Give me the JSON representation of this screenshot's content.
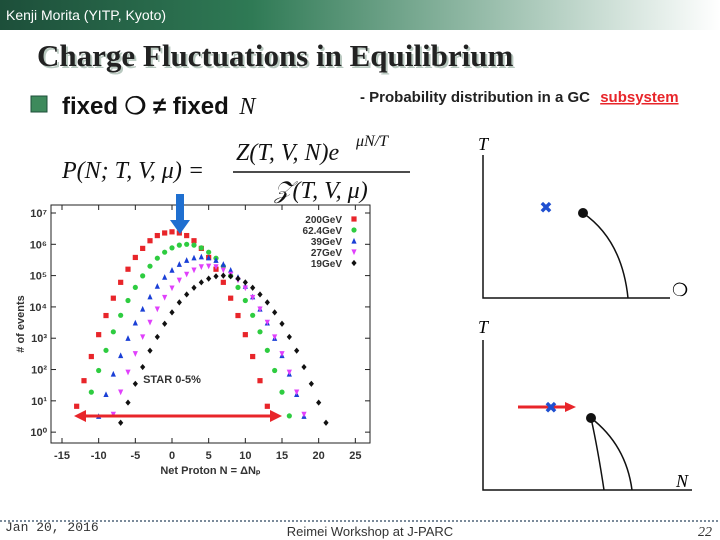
{
  "header": {
    "author": "Kenji Morita (YITP, Kyoto)"
  },
  "title": "Charge Fluctuations in Equilibrium",
  "bullet": {
    "text": "fixed ❍ ≠ fixed",
    "variable": "N"
  },
  "note": {
    "text": "- Probability distribution in a GC",
    "highlight": "subsystem"
  },
  "formula": {
    "lhs": "P(N; T, V, μ) =",
    "numerator": "Z(T, V, N)e",
    "exponent": "μN/T",
    "denominator": "𝒵(T, V, μ)"
  },
  "chart_data": {
    "type": "scatter",
    "x_label": "Net Proton N = ΔNₚ",
    "y_label": "# of events",
    "annotation": "STAR 0-5%",
    "log_y": true,
    "legend": "upper right",
    "xlim": [
      -16.5,
      27
    ],
    "ylim": [
      0.45,
      18000000
    ],
    "xticks": [
      -15,
      -10,
      -5,
      0,
      5,
      10,
      15,
      20,
      25
    ],
    "yticks": [
      {
        "value": 1,
        "label": "10⁰"
      },
      {
        "value": 10,
        "label": "10¹"
      },
      {
        "value": 100,
        "label": "10²"
      },
      {
        "value": 1000,
        "label": "10³"
      },
      {
        "value": 10000,
        "label": "10⁴"
      },
      {
        "value": 100000,
        "label": "10⁵"
      },
      {
        "value": 1000000,
        "label": "10⁶"
      },
      {
        "value": 10000000,
        "label": "10⁷"
      }
    ],
    "x": [
      -13,
      -12,
      -11,
      -10,
      -9,
      -8,
      -7,
      -6,
      -5,
      -4,
      -3,
      -2,
      -1,
      0,
      1,
      2,
      3,
      4,
      5,
      6,
      7,
      8,
      9,
      10,
      11,
      12,
      13,
      14,
      15,
      16,
      17,
      18,
      19,
      20,
      21
    ],
    "series": [
      {
        "name": "200GeV",
        "color": "#e8252a",
        "marker": "square",
        "values": [
          6.7,
          44,
          260,
          1300,
          5300,
          19000,
          61000,
          160000,
          380000,
          740000,
          1300000,
          1900000,
          2300000,
          2500000,
          2300000,
          1900000,
          1300000,
          740000,
          380000,
          160000,
          61000,
          19000,
          5300,
          1300,
          260,
          44,
          6.7,
          null,
          null,
          null,
          null,
          null,
          null,
          null,
          null
        ]
      },
      {
        "name": "62.4GeV",
        "color": "#2ecc40",
        "marker": "circle",
        "values": [
          null,
          3.3,
          19,
          93,
          410,
          1600,
          5400,
          16000,
          42000,
          98000,
          200000,
          360000,
          560000,
          770000,
          940000,
          1000000,
          940000,
          770000,
          560000,
          360000,
          200000,
          98000,
          42000,
          16000,
          5400,
          1600,
          410,
          93,
          19,
          3.3,
          null,
          null,
          null,
          null,
          null
        ]
      },
      {
        "name": "39GeV",
        "color": "#1a3fd6",
        "marker": "triangle",
        "values": [
          null,
          null,
          null,
          3.2,
          16,
          72,
          280,
          1000,
          3100,
          8600,
          21000,
          46000,
          89000,
          150000,
          230000,
          310000,
          370000,
          400000,
          370000,
          310000,
          230000,
          150000,
          89000,
          46000,
          21000,
          8600,
          3100,
          1000,
          280,
          72,
          16,
          3.2,
          null,
          null,
          null
        ]
      },
      {
        "name": "27GeV",
        "color": "#e040fb",
        "marker": "triangle-down",
        "values": [
          null,
          null,
          null,
          null,
          null,
          3.7,
          19,
          82,
          320,
          1100,
          3200,
          8500,
          20000,
          40000,
          71000,
          110000,
          150000,
          190000,
          200000,
          190000,
          150000,
          110000,
          71000,
          40000,
          20000,
          8500,
          3200,
          1100,
          320,
          82,
          19,
          3.7,
          null,
          null,
          null
        ]
      },
      {
        "name": "19GeV",
        "color": "#111111",
        "marker": "diamond",
        "values": [
          null,
          null,
          null,
          null,
          null,
          null,
          2.0,
          8.8,
          35,
          120,
          400,
          1100,
          2900,
          6700,
          14000,
          25000,
          41000,
          61000,
          80000,
          95000,
          100000,
          95000,
          80000,
          61000,
          41000,
          25000,
          14000,
          6700,
          2900,
          1100,
          400,
          120,
          35,
          8.8,
          2.0
        ]
      }
    ]
  },
  "diagram": {
    "top_y_label": "T",
    "top_x_symbol": "❍",
    "bottom_y_label": "T",
    "bottom_x_label": "N"
  },
  "footer": {
    "date": "Jan 20, 2016",
    "event": "Reimei Workshop at J-PARC",
    "page": "22"
  }
}
